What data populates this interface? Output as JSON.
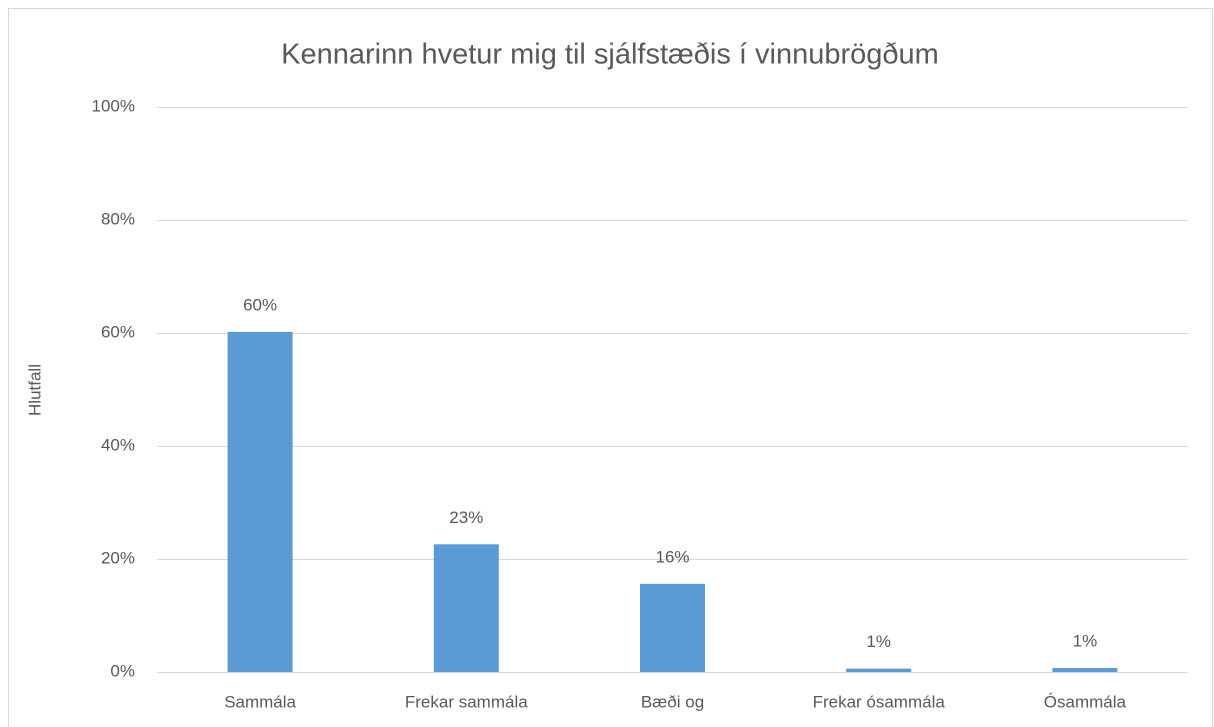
{
  "chart_data": {
    "type": "bar",
    "title": "Kennarinn hvetur mig til sjálfstæðis í vinnubrögðum",
    "y_label": "Hlutfall",
    "categories": [
      "Sammála",
      "Frekar sammála",
      "Bæði og",
      "Frekar ósammála",
      "Ósammála"
    ],
    "values": [
      60.2,
      22.6,
      15.6,
      0.6,
      0.7
    ],
    "value_labels": [
      "60%",
      "23%",
      "16%",
      "1%",
      "1%"
    ],
    "color": "#5b9bd5",
    "ylim": [
      0,
      100
    ],
    "yticks": [
      {
        "value": 0,
        "label": "0%"
      },
      {
        "value": 20,
        "label": "20%"
      },
      {
        "value": 40,
        "label": "40%"
      },
      {
        "value": 60,
        "label": "60%"
      },
      {
        "value": 80,
        "label": "80%"
      },
      {
        "value": 100,
        "label": "100%"
      }
    ],
    "grid": true
  }
}
